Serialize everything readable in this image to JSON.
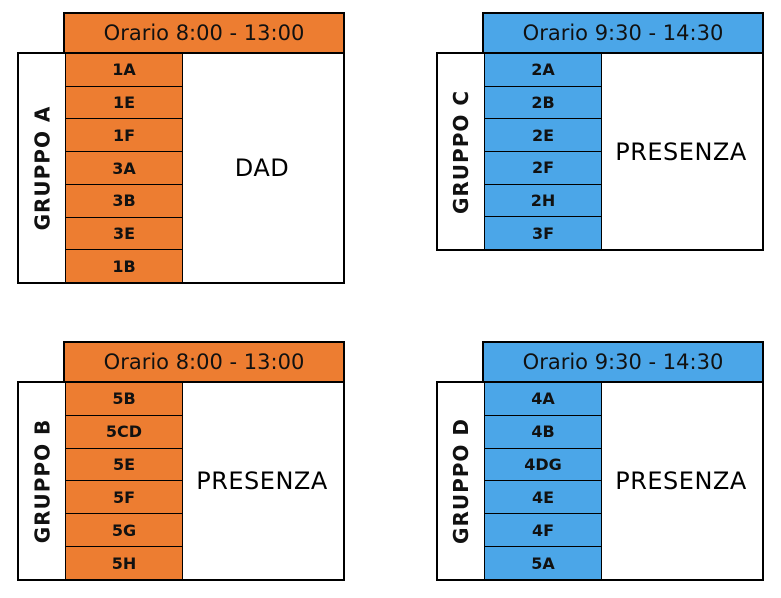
{
  "colors": {
    "orange": "#ED7D31",
    "blue": "#4BA6E8"
  },
  "blocks": [
    {
      "header": "Orario 8:00 - 13:00",
      "group": "GRUPPO A",
      "status": "DAD",
      "color": "#ED7D31",
      "classes": [
        "1A",
        "1E",
        "1F",
        "3A",
        "3B",
        "3E",
        "1B"
      ]
    },
    {
      "header": "Orario 9:30 - 14:30",
      "group": "GRUPPO C",
      "status": "PRESENZA",
      "color": "#4BA6E8",
      "classes": [
        "2A",
        "2B",
        "2E",
        "2F",
        "2H",
        "3F"
      ]
    },
    {
      "header": "Orario 8:00 - 13:00",
      "group": "GRUPPO B",
      "status": "PRESENZA",
      "color": "#ED7D31",
      "classes": [
        "5B",
        "5CD",
        "5E",
        "5F",
        "5G",
        "5H"
      ]
    },
    {
      "header": "Orario 9:30 - 14:30",
      "group": "GRUPPO D",
      "status": "PRESENZA",
      "color": "#4BA6E8",
      "classes": [
        "4A",
        "4B",
        "4DG",
        "4E",
        "4F",
        "5A"
      ]
    }
  ]
}
